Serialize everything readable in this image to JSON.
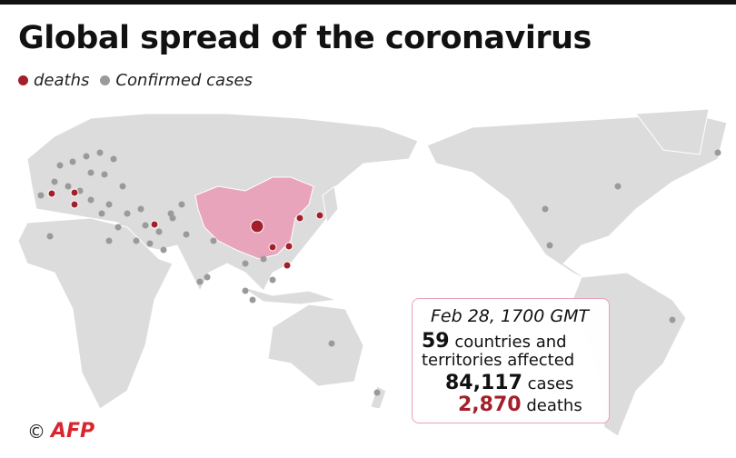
{
  "header": {
    "title": "Global spread of the coronavirus"
  },
  "legend": {
    "items": [
      {
        "label": "deaths",
        "color": "#a3202a"
      },
      {
        "label": "Confirmed cases",
        "color": "#9a9a9a"
      }
    ]
  },
  "info_box": {
    "date": "Feb 28, 1700 GMT",
    "countries_count": "59",
    "countries_text_1": "countries and",
    "countries_text_2": "territories affected",
    "cases_count": "84,117",
    "cases_label": "cases",
    "deaths_count": "2,870",
    "deaths_label": "deaths"
  },
  "credit": {
    "copyright": "©",
    "source": "AFP"
  }
}
